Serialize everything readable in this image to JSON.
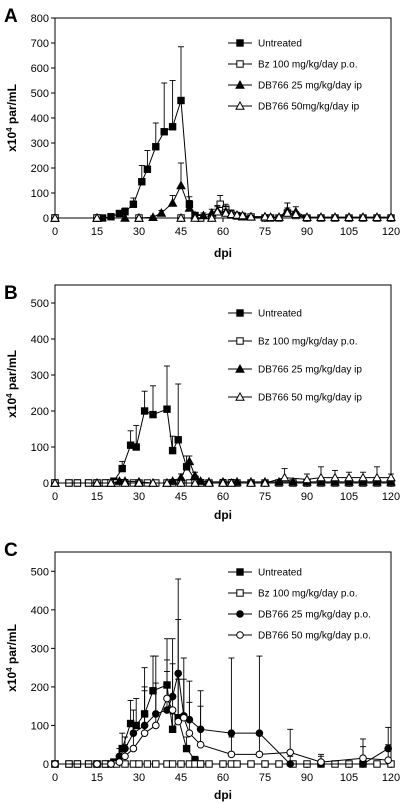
{
  "chart_data": [
    {
      "panel": "A",
      "type": "line",
      "xlabel": "dpi",
      "ylabel": "x10^4 par/mL",
      "xlim": [
        0,
        120
      ],
      "ylim": [
        0,
        800
      ],
      "xticks": [
        0,
        15,
        30,
        45,
        60,
        75,
        90,
        105,
        120
      ],
      "yticks": [
        0,
        100,
        200,
        300,
        400,
        500,
        600,
        700,
        800
      ],
      "grid": false,
      "legend_position": "right",
      "series": [
        {
          "name": "Untreated",
          "marker": "filled-square",
          "x": [
            0,
            15,
            17,
            20,
            23,
            25,
            28,
            31,
            33,
            36,
            39,
            42,
            45,
            48,
            50,
            52
          ],
          "y": [
            0,
            0,
            0,
            5,
            18,
            25,
            55,
            145,
            195,
            285,
            345,
            365,
            470,
            55,
            10,
            0
          ],
          "err": [
            0,
            0,
            0,
            0,
            0,
            15,
            25,
            65,
            75,
            95,
            195,
            185,
            215,
            30,
            0,
            0
          ]
        },
        {
          "name": "Bz 100 mg/kg/day p.o.",
          "marker": "open-square",
          "x": [
            0,
            15,
            30,
            45,
            52,
            56,
            59,
            61,
            63,
            65,
            67,
            70,
            75,
            77,
            80,
            83,
            86,
            90,
            95,
            100,
            105,
            110,
            115,
            120
          ],
          "y": [
            0,
            0,
            0,
            0,
            0,
            0,
            55,
            35,
            12,
            8,
            5,
            4,
            0,
            0,
            0,
            20,
            10,
            0,
            0,
            0,
            0,
            0,
            0,
            0
          ],
          "err": [
            0,
            0,
            0,
            0,
            0,
            0,
            35,
            20,
            20,
            15,
            10,
            10,
            5,
            5,
            5,
            40,
            15,
            10,
            5,
            5,
            5,
            5,
            5,
            5
          ]
        },
        {
          "name": "DB766 25 mg/kg/day ip",
          "marker": "filled-triangle",
          "x": [
            0,
            15,
            25,
            30,
            35,
            38,
            42,
            45,
            48,
            50,
            53,
            56,
            58,
            61,
            63,
            65,
            67,
            70,
            75,
            77,
            80,
            83,
            86,
            90,
            95,
            100,
            105,
            110,
            115,
            120
          ],
          "y": [
            0,
            0,
            0,
            0,
            3,
            20,
            60,
            130,
            40,
            10,
            10,
            20,
            30,
            25,
            15,
            10,
            5,
            5,
            5,
            3,
            3,
            30,
            25,
            3,
            3,
            3,
            3,
            3,
            3,
            3
          ],
          "err": [
            0,
            0,
            0,
            0,
            5,
            10,
            30,
            90,
            30,
            10,
            10,
            15,
            20,
            20,
            15,
            10,
            10,
            5,
            5,
            5,
            5,
            30,
            20,
            5,
            5,
            5,
            5,
            5,
            5,
            5
          ]
        },
        {
          "name": "DB766 50mg/kg/day ip",
          "marker": "open-triangle",
          "x": [
            0,
            15,
            30,
            45,
            50,
            56,
            58,
            61,
            63,
            65,
            67,
            70,
            75,
            77,
            80,
            83,
            86,
            90,
            95,
            100,
            105,
            110,
            115,
            120
          ],
          "y": [
            0,
            0,
            0,
            0,
            0,
            0,
            25,
            20,
            15,
            12,
            10,
            5,
            5,
            3,
            3,
            20,
            15,
            3,
            3,
            3,
            3,
            3,
            3,
            3
          ],
          "err": [
            0,
            0,
            0,
            0,
            0,
            0,
            20,
            15,
            15,
            10,
            10,
            5,
            5,
            5,
            5,
            20,
            10,
            5,
            5,
            5,
            5,
            5,
            5,
            5
          ]
        }
      ]
    },
    {
      "panel": "B",
      "type": "line",
      "xlabel": "dpi",
      "ylabel": "x10^4 par/mL",
      "xlim": [
        0,
        120
      ],
      "ylim": [
        0,
        550
      ],
      "xticks": [
        0,
        15,
        30,
        45,
        60,
        75,
        90,
        105,
        120
      ],
      "yticks": [
        0,
        100,
        200,
        300,
        400,
        500
      ],
      "grid": false,
      "legend_position": "right",
      "series": [
        {
          "name": "Untreated",
          "marker": "filled-square",
          "x": [
            0,
            5,
            8,
            12,
            15,
            18,
            21,
            24,
            27,
            29,
            32,
            35,
            40,
            42,
            44,
            47,
            50,
            52
          ],
          "y": [
            0,
            0,
            0,
            0,
            0,
            0,
            5,
            40,
            105,
            100,
            200,
            190,
            205,
            90,
            120,
            45,
            10,
            0
          ],
          "err": [
            0,
            0,
            0,
            0,
            0,
            0,
            5,
            20,
            40,
            60,
            55,
            80,
            120,
            40,
            155,
            30,
            10,
            0
          ]
        },
        {
          "name": "Bz 100 mg/kg/day p.o.",
          "marker": "open-square",
          "x": [
            0,
            5,
            8,
            12,
            15,
            18,
            20,
            22,
            25,
            28,
            30,
            33,
            36,
            40,
            42,
            45,
            48,
            50,
            52,
            55,
            60,
            63,
            65,
            70,
            75,
            80,
            85,
            90,
            95,
            100,
            105,
            110,
            115,
            120
          ],
          "y": [
            0,
            0,
            0,
            0,
            0,
            0,
            0,
            0,
            0,
            0,
            0,
            0,
            0,
            0,
            0,
            0,
            0,
            0,
            0,
            0,
            0,
            0,
            0,
            0,
            0,
            0,
            0,
            0,
            0,
            0,
            0,
            0,
            0,
            0
          ],
          "err": [
            0,
            0,
            0,
            0,
            0,
            0,
            0,
            0,
            0,
            0,
            0,
            0,
            0,
            0,
            0,
            0,
            0,
            0,
            0,
            0,
            0,
            0,
            0,
            0,
            0,
            0,
            0,
            0,
            0,
            0,
            0,
            0,
            0,
            0
          ]
        },
        {
          "name": "DB766 25 mg/kg/day ip",
          "marker": "filled-triangle",
          "x": [
            0,
            15,
            20,
            23,
            25,
            30,
            35,
            40,
            42,
            45,
            48,
            50,
            52,
            55,
            60,
            65,
            70,
            75,
            80,
            85,
            90,
            95,
            100,
            105,
            110,
            115,
            120
          ],
          "y": [
            0,
            0,
            0,
            5,
            5,
            3,
            0,
            0,
            5,
            15,
            60,
            20,
            5,
            3,
            3,
            3,
            3,
            3,
            3,
            3,
            3,
            3,
            3,
            3,
            3,
            3,
            3
          ],
          "err": [
            0,
            0,
            0,
            5,
            5,
            5,
            0,
            0,
            5,
            10,
            15,
            10,
            5,
            5,
            5,
            5,
            5,
            5,
            5,
            5,
            5,
            5,
            5,
            5,
            5,
            5,
            5
          ]
        },
        {
          "name": "DB766 50 mg/kg/day ip",
          "marker": "open-triangle",
          "x": [
            0,
            15,
            20,
            25,
            30,
            35,
            40,
            45,
            50,
            55,
            60,
            63,
            70,
            75,
            82,
            90,
            95,
            100,
            105,
            110,
            115,
            120
          ],
          "y": [
            0,
            0,
            0,
            0,
            0,
            0,
            0,
            0,
            0,
            0,
            0,
            0,
            0,
            0,
            15,
            10,
            15,
            15,
            15,
            15,
            15,
            15
          ],
          "err": [
            0,
            0,
            0,
            0,
            0,
            0,
            0,
            0,
            0,
            0,
            10,
            10,
            5,
            5,
            25,
            15,
            30,
            20,
            15,
            15,
            30,
            10
          ]
        }
      ]
    },
    {
      "panel": "C",
      "type": "line",
      "xlabel": "dpi",
      "ylabel": "x10^4 par/mL",
      "xlim": [
        0,
        120
      ],
      "ylim": [
        0,
        550
      ],
      "xticks": [
        0,
        15,
        30,
        45,
        60,
        75,
        90,
        105,
        120
      ],
      "yticks": [
        0,
        100,
        200,
        300,
        400,
        500
      ],
      "grid": false,
      "legend_position": "top-right",
      "series": [
        {
          "name": "Untreated",
          "marker": "filled-square",
          "x": [
            0,
            5,
            8,
            12,
            15,
            18,
            21,
            24,
            27,
            29,
            32,
            35,
            40,
            42,
            44,
            47,
            50,
            52
          ],
          "y": [
            0,
            0,
            0,
            0,
            0,
            0,
            5,
            40,
            105,
            100,
            130,
            190,
            205,
            90,
            120,
            40,
            10,
            0
          ],
          "err": [
            0,
            0,
            0,
            0,
            0,
            0,
            5,
            40,
            60,
            70,
            60,
            90,
            120,
            40,
            360,
            30,
            10,
            0
          ]
        },
        {
          "name": "Bz 100 mg/kg/day p.o.",
          "marker": "open-square",
          "x": [
            0,
            5,
            8,
            12,
            15,
            18,
            20,
            22,
            25,
            28,
            30,
            33,
            36,
            40,
            42,
            45,
            48,
            50,
            52,
            55,
            60,
            63,
            65,
            70,
            75,
            80,
            85,
            90,
            95,
            100,
            105,
            110,
            115,
            120
          ],
          "y": [
            0,
            0,
            0,
            0,
            0,
            0,
            0,
            0,
            0,
            0,
            0,
            0,
            0,
            0,
            0,
            0,
            0,
            0,
            0,
            0,
            0,
            0,
            0,
            0,
            0,
            0,
            0,
            0,
            0,
            0,
            0,
            0,
            0,
            0
          ],
          "err": [
            0,
            0,
            0,
            0,
            0,
            0,
            0,
            0,
            0,
            0,
            0,
            0,
            0,
            0,
            0,
            0,
            0,
            0,
            0,
            0,
            0,
            0,
            0,
            0,
            0,
            0,
            0,
            0,
            0,
            0,
            0,
            0,
            0,
            0
          ]
        },
        {
          "name": "DB766 25 mg/kg/day p.o.",
          "marker": "filled-circle",
          "x": [
            0,
            15,
            20,
            23,
            25,
            28,
            32,
            36,
            40,
            42,
            44,
            46,
            48,
            52,
            63,
            73,
            84,
            95,
            110,
            119
          ],
          "y": [
            0,
            0,
            0,
            20,
            40,
            80,
            100,
            130,
            140,
            175,
            235,
            125,
            115,
            90,
            80,
            80,
            0,
            0,
            0,
            40
          ],
          "err": [
            0,
            0,
            0,
            20,
            30,
            60,
            150,
            150,
            130,
            150,
            140,
            150,
            100,
            100,
            195,
            200,
            20,
            20,
            45,
            55
          ]
        },
        {
          "name": "DB766 50 mg/kg/day p.o.",
          "marker": "open-circle",
          "x": [
            0,
            15,
            20,
            23,
            25,
            28,
            32,
            36,
            40,
            42,
            44,
            46,
            48,
            52,
            63,
            73,
            84,
            95,
            110,
            119
          ],
          "y": [
            0,
            0,
            0,
            5,
            20,
            40,
            80,
            100,
            170,
            140,
            110,
            120,
            80,
            50,
            25,
            25,
            30,
            5,
            15,
            10
          ],
          "err": [
            0,
            0,
            0,
            10,
            30,
            40,
            120,
            110,
            70,
            120,
            110,
            100,
            80,
            100,
            45,
            50,
            60,
            20,
            50,
            40
          ]
        }
      ]
    }
  ]
}
